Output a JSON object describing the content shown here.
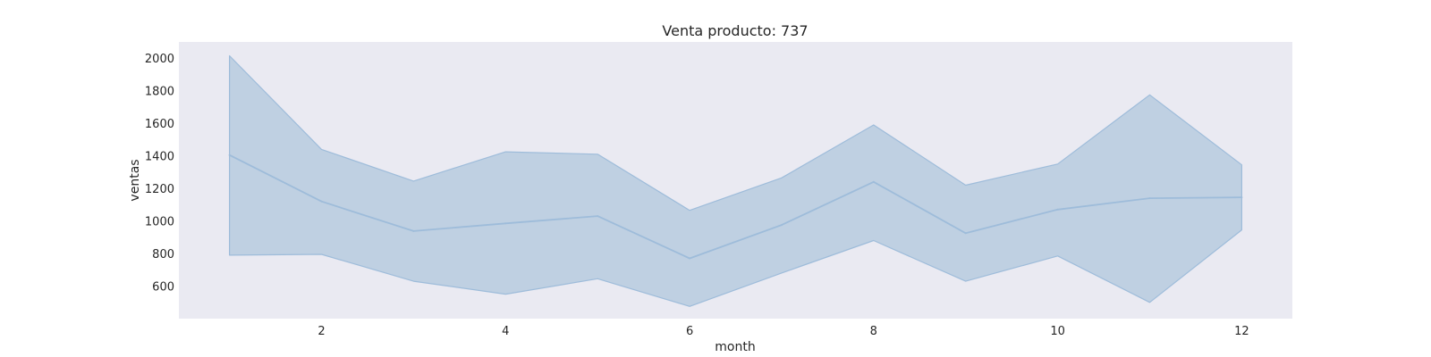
{
  "chart_data": {
    "type": "line",
    "title": "Venta producto: 737",
    "xlabel": "month",
    "ylabel": "ventas",
    "x": [
      1,
      2,
      3,
      4,
      5,
      6,
      7,
      8,
      9,
      10,
      11,
      12
    ],
    "series": [
      {
        "values": [
          1405,
          1120,
          938,
          985,
          1030,
          770,
          975,
          1240,
          925,
          1070,
          1140,
          1145
        ],
        "ci_upper": [
          2015,
          1440,
          1245,
          1425,
          1410,
          1065,
          1265,
          1590,
          1220,
          1350,
          1775,
          1345
        ],
        "ci_lower": [
          790,
          795,
          630,
          550,
          645,
          475,
          680,
          880,
          630,
          785,
          500,
          945
        ]
      }
    ],
    "xticks": [
      2,
      4,
      6,
      8,
      10,
      12
    ],
    "yticks": [
      600,
      800,
      1000,
      1200,
      1400,
      1600,
      1800,
      2000
    ],
    "xlim": [
      0.45,
      12.55
    ],
    "ylim": [
      400,
      2100
    ],
    "grid": false,
    "colors": {
      "plot_background": "#eaeaf2",
      "line": "#9ebcda",
      "band": "#bfd0e2"
    }
  }
}
